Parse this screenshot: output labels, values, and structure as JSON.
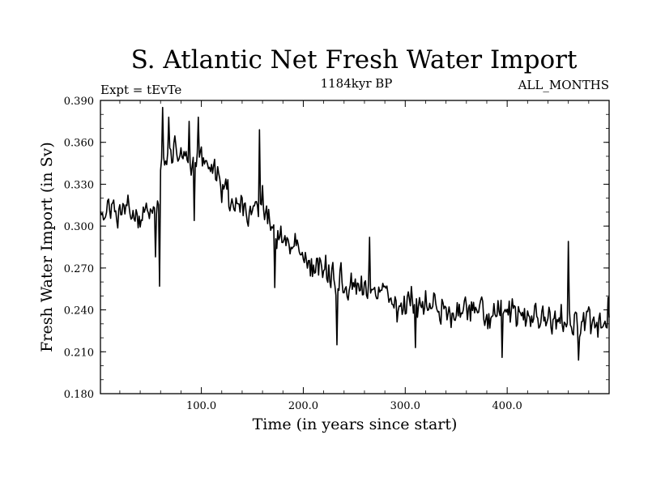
{
  "chart_data": {
    "type": "line",
    "title": "S. Atlantic Net Fresh Water Import",
    "subtitle_left": "Expt = tEvTe",
    "subtitle_center": "1184kyr BP",
    "subtitle_right": "ALL_MONTHS",
    "xlabel": "Time (in years since start)",
    "ylabel": "Fresh Water Import (in Sv)",
    "xlim": [
      1,
      500
    ],
    "ylim": [
      0.18,
      0.39
    ],
    "x_ticks": [
      100,
      200,
      300,
      400
    ],
    "x_tick_labels": [
      "100.0",
      "200.0",
      "300.0",
      "400.0"
    ],
    "y_ticks": [
      0.18,
      0.21,
      0.24,
      0.27,
      0.3,
      0.33,
      0.36,
      0.39
    ],
    "y_tick_labels": [
      "0.180",
      "0.210",
      "0.240",
      "0.270",
      "0.300",
      "0.330",
      "0.360",
      "0.390"
    ],
    "grid": false,
    "series": [
      {
        "name": "Net Fresh Water Import",
        "color": "#000000",
        "trend_x": [
          1,
          10,
          20,
          30,
          40,
          50,
          58,
          62,
          70,
          80,
          90,
          100,
          110,
          120,
          130,
          140,
          150,
          160,
          165,
          170,
          180,
          190,
          200,
          210,
          220,
          230,
          240,
          250,
          260,
          270,
          280,
          290,
          300,
          320,
          340,
          360,
          380,
          400,
          420,
          440,
          460,
          480,
          490,
          500
        ],
        "trend_y": [
          0.305,
          0.315,
          0.308,
          0.31,
          0.305,
          0.312,
          0.318,
          0.345,
          0.352,
          0.35,
          0.348,
          0.346,
          0.342,
          0.33,
          0.318,
          0.312,
          0.315,
          0.318,
          0.305,
          0.298,
          0.292,
          0.285,
          0.28,
          0.272,
          0.268,
          0.262,
          0.258,
          0.258,
          0.256,
          0.252,
          0.25,
          0.247,
          0.245,
          0.243,
          0.24,
          0.239,
          0.238,
          0.236,
          0.234,
          0.234,
          0.233,
          0.232,
          0.228,
          0.23
        ],
        "noise_amplitude": 0.012,
        "spikes": [
          {
            "x": 55,
            "y": 0.278
          },
          {
            "x": 59,
            "y": 0.257
          },
          {
            "x": 62,
            "y": 0.385
          },
          {
            "x": 68,
            "y": 0.378
          },
          {
            "x": 88,
            "y": 0.375
          },
          {
            "x": 93,
            "y": 0.304
          },
          {
            "x": 97,
            "y": 0.378
          },
          {
            "x": 157,
            "y": 0.369
          },
          {
            "x": 172,
            "y": 0.256
          },
          {
            "x": 233,
            "y": 0.215
          },
          {
            "x": 265,
            "y": 0.292
          },
          {
            "x": 310,
            "y": 0.213
          },
          {
            "x": 395,
            "y": 0.206
          },
          {
            "x": 460,
            "y": 0.289
          },
          {
            "x": 470,
            "y": 0.204
          },
          {
            "x": 499,
            "y": 0.249
          }
        ]
      }
    ]
  }
}
